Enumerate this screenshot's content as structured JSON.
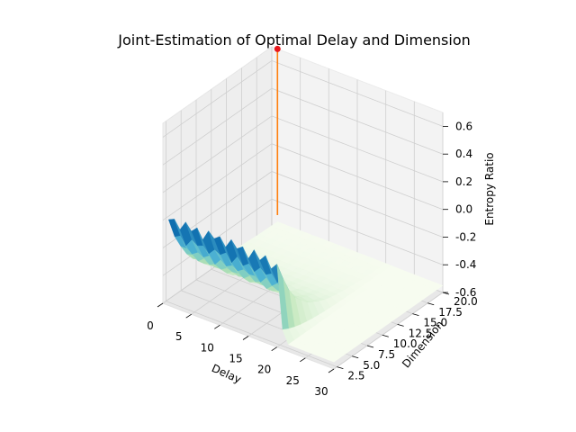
{
  "chart_data": {
    "type": "surface3d",
    "title": "Joint-Estimation of Optimal Delay and Dimension",
    "xlabel": "Delay",
    "ylabel": "Dimension",
    "zlabel": "Entropy Ratio",
    "xlim": [
      0,
      30
    ],
    "ylim": [
      2,
      20
    ],
    "zlim": [
      -0.6,
      0.7
    ],
    "x_ticks": [
      "0",
      "5",
      "10",
      "15",
      "20",
      "25",
      "30"
    ],
    "y_ticks": [
      "2.5",
      "5.0",
      "7.5",
      "10.0",
      "12.5",
      "15.0",
      "17.5",
      "20.0"
    ],
    "z_ticks": [
      "-0.6",
      "-0.4",
      "-0.2",
      "0.0",
      "0.2",
      "0.4",
      "0.6"
    ],
    "grid": true,
    "colormap": "GnBu",
    "surface": {
      "delay_range": [
        1,
        30
      ],
      "dimension_range": [
        2,
        20
      ],
      "ridge_dimension": 2,
      "ridge_delay_end": 20,
      "ridge_values": [
        0.02,
        0.04,
        -0.02,
        0.05,
        0.0,
        0.04,
        -0.03,
        0.05,
        0.01,
        0.04,
        -0.02,
        0.05,
        0.0,
        0.03,
        -0.04,
        0.04,
        -0.02,
        0.03,
        -0.05,
        0.0
      ],
      "plateau_value": -0.55
    },
    "optimum": {
      "delay": 1,
      "dimension": 20,
      "entropy_ratio": 0.7,
      "stem_base": -0.5,
      "marker_color": "#e8161b",
      "stem_color": "#ff7f0e"
    }
  }
}
